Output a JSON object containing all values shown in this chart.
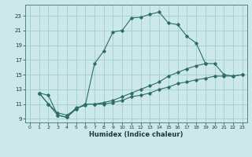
{
  "xlabel": "Humidex (Indice chaleur)",
  "bg_color": "#cce8e8",
  "line_color": "#2d6e62",
  "grid_color": "#9ecece",
  "xlim": [
    -0.5,
    23.5
  ],
  "ylim": [
    8.5,
    24.5
  ],
  "xticks": [
    0,
    1,
    2,
    3,
    4,
    5,
    6,
    7,
    8,
    9,
    10,
    11,
    12,
    13,
    14,
    15,
    16,
    17,
    18,
    19,
    20,
    21,
    22,
    23
  ],
  "yticks": [
    9,
    11,
    13,
    15,
    17,
    19,
    21,
    23
  ],
  "series": [
    {
      "x": [
        1,
        2,
        3,
        4,
        5,
        6,
        7,
        8,
        9,
        10,
        11,
        12,
        13,
        14,
        15,
        16,
        17,
        18,
        19
      ],
      "y": [
        12.5,
        12.2,
        9.5,
        9.2,
        10.5,
        10.8,
        16.5,
        18.2,
        20.8,
        21.0,
        22.7,
        22.8,
        23.2,
        23.5,
        22.0,
        21.8,
        20.2,
        19.3,
        16.5
      ]
    },
    {
      "x": [
        1,
        2,
        3,
        4,
        5,
        6,
        7,
        8,
        9,
        10,
        11,
        12,
        13,
        14,
        15,
        16,
        17,
        18,
        19,
        20,
        21,
        22,
        23
      ],
      "y": [
        12.5,
        11.0,
        9.5,
        9.2,
        10.3,
        11.0,
        11.0,
        11.2,
        11.5,
        12.0,
        12.5,
        13.0,
        13.5,
        14.0,
        14.8,
        15.3,
        15.8,
        16.2,
        16.5,
        16.5,
        15.0,
        14.8,
        15.0
      ]
    },
    {
      "x": [
        1,
        2,
        3,
        4,
        5,
        6,
        7,
        8,
        9,
        10,
        11,
        12,
        13,
        14,
        15,
        16,
        17,
        18,
        19,
        20,
        21,
        22,
        23
      ],
      "y": [
        12.5,
        11.0,
        9.8,
        9.5,
        10.3,
        11.0,
        11.0,
        11.0,
        11.2,
        11.5,
        12.0,
        12.2,
        12.5,
        13.0,
        13.3,
        13.8,
        14.0,
        14.3,
        14.5,
        14.8,
        14.8,
        14.8,
        15.0
      ]
    }
  ]
}
